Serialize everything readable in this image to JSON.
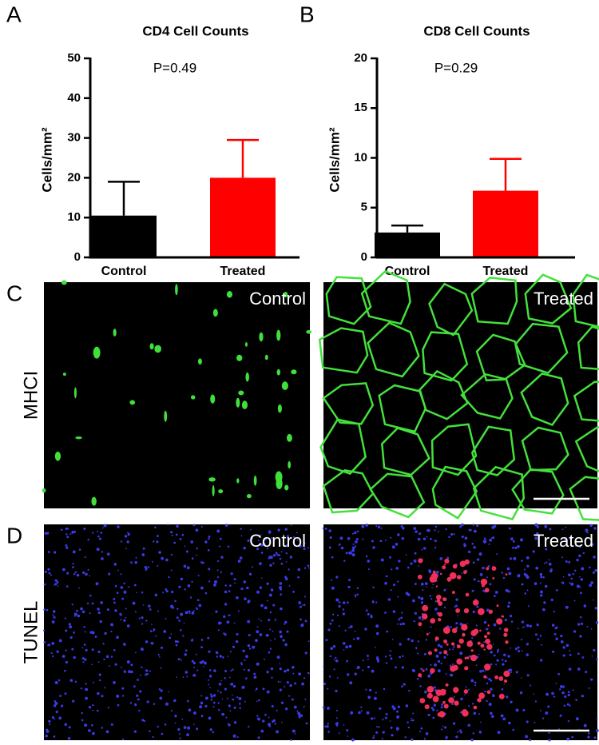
{
  "chart_data": [
    {
      "type": "bar",
      "panel_label": "A",
      "title": "CD4 Cell Counts",
      "annotation": "P=0.49",
      "y_label": "Cells/mm²",
      "categories": [
        "Control",
        "Treated"
      ],
      "values": [
        10.5,
        20
      ],
      "errors": [
        8.5,
        9.5
      ],
      "colors": [
        "#000000",
        "#ff0000"
      ],
      "ylim": [
        0,
        50
      ],
      "yticks": [
        0,
        10,
        20,
        30,
        40,
        50
      ],
      "grid": false
    },
    {
      "type": "bar",
      "panel_label": "B",
      "title": "CD8 Cell Counts",
      "annotation": "P=0.29",
      "y_label": "Cells/mm²",
      "categories": [
        "Control",
        "Treated"
      ],
      "values": [
        2.5,
        6.7
      ],
      "errors": [
        0.7,
        3.2
      ],
      "colors": [
        "#000000",
        "#ff0000"
      ],
      "ylim": [
        0,
        20
      ],
      "yticks": [
        0,
        5,
        10,
        15,
        20
      ],
      "grid": false
    }
  ],
  "images": [
    {
      "panel_label": "C",
      "stain": "MHCI",
      "tiles": [
        "Control",
        "Treated"
      ]
    },
    {
      "panel_label": "D",
      "stain": "TUNEL",
      "tiles": [
        "Control",
        "Treated"
      ]
    }
  ]
}
